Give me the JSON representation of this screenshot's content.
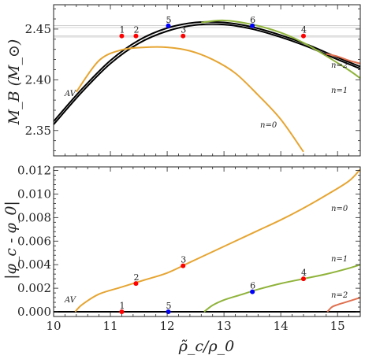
{
  "chart_data": [
    {
      "type": "line",
      "panel": "top",
      "ylabel": "M_B (M_⊙)",
      "xlim": [
        10,
        15.4
      ],
      "ylim": [
        2.325,
        2.474
      ],
      "xticks": [
        10,
        11,
        12,
        13,
        14,
        15
      ],
      "yticks": [
        2.35,
        2.4,
        2.45
      ],
      "ytick_labels": [
        "2.35",
        "2.40",
        "2.45"
      ],
      "hlines": [
        2.4535,
        2.4515,
        2.4432,
        2.4422
      ],
      "series": [
        {
          "name": "AV",
          "label": "AV",
          "color": "#000000",
          "x": [
            10,
            10.5,
            11,
            11.5,
            12,
            12.5,
            13,
            13.5,
            14,
            14.5,
            15,
            15.4
          ],
          "y": [
            2.359,
            2.391,
            2.419,
            2.439,
            2.451,
            2.4565,
            2.4565,
            2.452,
            2.444,
            2.434,
            2.422,
            2.413
          ]
        },
        {
          "name": "AV-2",
          "color": "#000000",
          "x": [
            10,
            10.5,
            11,
            11.5,
            12,
            12.5,
            13,
            13.5,
            14,
            14.5,
            15,
            15.4
          ],
          "y": [
            2.356,
            2.388,
            2.416,
            2.436,
            2.448,
            2.454,
            2.4545,
            2.45,
            2.442,
            2.432,
            2.42,
            2.411
          ]
        },
        {
          "name": "n=0",
          "label": "n=0",
          "color": "#e6a532",
          "x": [
            10.4,
            10.8,
            11.2,
            11.6,
            12.0,
            12.4,
            12.8,
            13.2,
            13.6,
            14.0,
            14.4
          ],
          "y": [
            2.388,
            2.419,
            2.4295,
            2.432,
            2.432,
            2.4285,
            2.42,
            2.4065,
            2.385,
            2.361,
            2.329
          ]
        },
        {
          "name": "n=1",
          "label": "n=1",
          "color": "#8fb33a",
          "x": [
            12.6,
            13.0,
            13.5,
            14.0,
            14.4,
            14.8,
            15.2,
            15.4
          ],
          "y": [
            2.4565,
            2.4585,
            2.4545,
            2.4465,
            2.4365,
            2.4235,
            2.4095,
            2.4015
          ]
        },
        {
          "name": "n=2",
          "label": "n=2",
          "color": "#e07050",
          "x": [
            14.8,
            15.0,
            15.2,
            15.4
          ],
          "y": [
            2.4255,
            2.423,
            2.419,
            2.416
          ]
        }
      ],
      "points": [
        {
          "label": "1",
          "x": 11.2,
          "y": 2.4432,
          "color": "#ff0000"
        },
        {
          "label": "2",
          "x": 11.45,
          "y": 2.4432,
          "color": "#ff0000"
        },
        {
          "label": "3",
          "x": 12.28,
          "y": 2.4432,
          "color": "#ff0000"
        },
        {
          "label": "4",
          "x": 14.4,
          "y": 2.4432,
          "color": "#ff0000"
        },
        {
          "label": "5",
          "x": 12.02,
          "y": 2.4532,
          "color": "#0000ff"
        },
        {
          "label": "6",
          "x": 13.5,
          "y": 2.4532,
          "color": "#0000ff"
        }
      ]
    },
    {
      "type": "line",
      "panel": "bottom",
      "xlabel": "ρ̃_c/ρ_0",
      "ylabel": "|φ_c - φ_0|",
      "xlim": [
        10,
        15.4
      ],
      "ylim": [
        -0.0004,
        0.0123
      ],
      "xticks": [
        10,
        11,
        12,
        13,
        14,
        15
      ],
      "yticks": [
        0.0,
        0.002,
        0.004,
        0.006,
        0.008,
        0.01,
        0.012
      ],
      "ytick_labels": [
        "0.000",
        "0.002",
        "0.004",
        "0.006",
        "0.008",
        "0.010",
        "0.012"
      ],
      "series": [
        {
          "name": "AV",
          "label": "AV",
          "color": "#000000",
          "x": [
            10,
            15.4
          ],
          "y": [
            0.0,
            0.0
          ]
        },
        {
          "name": "n=0",
          "label": "n=0",
          "color": "#e6a532",
          "x": [
            10.38,
            10.5,
            10.8,
            11.2,
            11.6,
            12.0,
            12.4,
            12.8,
            13.2,
            13.6,
            14.0,
            14.4,
            14.8,
            15.2,
            15.4
          ],
          "y": [
            0.0,
            0.0006,
            0.0015,
            0.0021,
            0.0027,
            0.0033,
            0.0042,
            0.0051,
            0.006,
            0.0069,
            0.0078,
            0.0088,
            0.0099,
            0.0111,
            0.0121
          ]
        },
        {
          "name": "n=1",
          "label": "n=1",
          "color": "#8fb33a",
          "x": [
            12.65,
            12.8,
            13.0,
            13.3,
            13.6,
            14.0,
            14.4,
            14.8,
            15.2,
            15.4
          ],
          "y": [
            0.0,
            0.00055,
            0.001,
            0.00145,
            0.0019,
            0.0024,
            0.0028,
            0.0032,
            0.0037,
            0.004
          ]
        },
        {
          "name": "n=2",
          "label": "n=2",
          "color": "#e07050",
          "x": [
            14.82,
            14.9,
            15.0,
            15.1,
            15.2,
            15.3,
            15.4
          ],
          "y": [
            0.0,
            0.0004,
            0.0006,
            0.00075,
            0.0009,
            0.00105,
            0.0012
          ]
        }
      ],
      "points": [
        {
          "label": "1",
          "x": 11.2,
          "y": 0.0,
          "color": "#ff0000"
        },
        {
          "label": "2",
          "x": 11.45,
          "y": 0.0024,
          "color": "#ff0000"
        },
        {
          "label": "3",
          "x": 12.28,
          "y": 0.0039,
          "color": "#ff0000"
        },
        {
          "label": "4",
          "x": 14.4,
          "y": 0.0028,
          "color": "#ff0000"
        },
        {
          "label": "5",
          "x": 12.02,
          "y": 0.0,
          "color": "#0000ff"
        },
        {
          "label": "6",
          "x": 13.5,
          "y": 0.0017,
          "color": "#0000ff"
        }
      ]
    }
  ]
}
